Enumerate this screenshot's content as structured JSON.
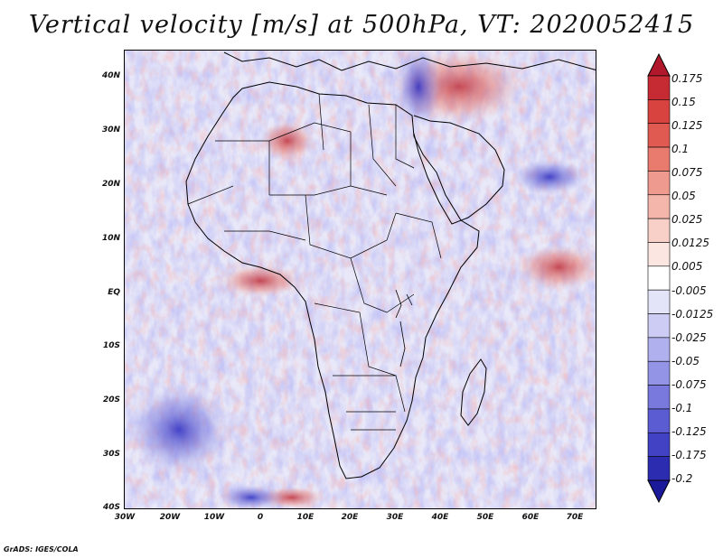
{
  "title": "Vertical velocity [m/s] at 500hPa, VT: 2020052415",
  "credit": "GrADS: IGES/COLA",
  "y_axis_labels": [
    "40N",
    "30N",
    "20N",
    "10N",
    "EQ",
    "10S",
    "20S",
    "30S",
    "40S"
  ],
  "x_axis_labels": [
    "30W",
    "20W",
    "10W",
    "0",
    "10E",
    "20E",
    "30E",
    "40E",
    "50E",
    "60E",
    "70E"
  ],
  "colorbar": {
    "labels": [
      "0.175",
      "0.15",
      "0.125",
      "0.1",
      "0.075",
      "0.05",
      "0.025",
      "0.0125",
      "0.005",
      "-0.005",
      "-0.0125",
      "-0.025",
      "-0.05",
      "-0.075",
      "-0.1",
      "-0.125",
      "-0.175",
      "-0.2"
    ],
    "colors": [
      "#b2182b",
      "#c62a33",
      "#d8423f",
      "#e05a52",
      "#e87a6e",
      "#ef9a8e",
      "#f4b6aa",
      "#f8d0c8",
      "#fbe6e2",
      "#ffffff",
      "#e4e4f8",
      "#ccccf4",
      "#b0b0ee",
      "#9494e6",
      "#7878dd",
      "#5c5cd2",
      "#4242c4",
      "#2c2cb0",
      "#1a1a9a"
    ]
  },
  "map_colors": {
    "upward": "#2a2ac0",
    "downward": "#c0303a",
    "land_border": "#000000"
  }
}
